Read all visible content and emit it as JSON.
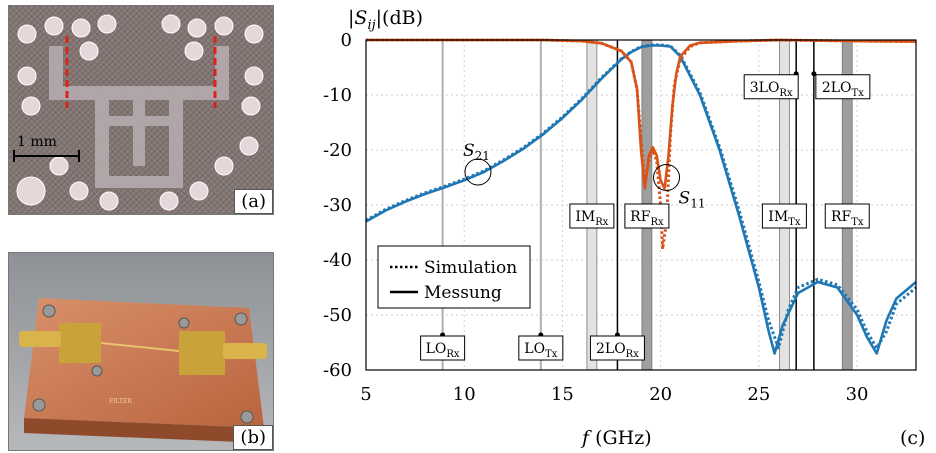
{
  "photos": {
    "a": {
      "label": "(a)",
      "scale_text": "1 mm"
    },
    "b": {
      "label": "(b)"
    }
  },
  "chart_data": {
    "type": "line",
    "panel_label": "(c)",
    "ylabel": "|S_ij|(dB)",
    "xlabel": "f (GHz)",
    "xlim": [
      5,
      33
    ],
    "ylim": [
      -60,
      0
    ],
    "xticks": [
      5,
      10,
      15,
      20,
      25,
      30
    ],
    "yticks": [
      0,
      -10,
      -20,
      -30,
      -40,
      -50,
      -60
    ],
    "grid": true,
    "legend": {
      "position": "lower-left",
      "entries": [
        {
          "label": "Simulation",
          "style": "dotted"
        },
        {
          "label": "Messung",
          "style": "solid"
        }
      ]
    },
    "colors": {
      "S21": "#1f77b4",
      "S11": "#d95319"
    },
    "series": [
      {
        "name": "S21",
        "label_pos": [
          10.7,
          -22
        ],
        "style": "Messung",
        "x": [
          5,
          6,
          7,
          8,
          9,
          10,
          11,
          12,
          13,
          14,
          15,
          16,
          17,
          18,
          18.5,
          19,
          19.5,
          20,
          20.5,
          21,
          22,
          23,
          24,
          25,
          25.5,
          25.8,
          26.2,
          27,
          28,
          29,
          30,
          30.5,
          31,
          31.5,
          32,
          33
        ],
        "y": [
          -33,
          -31,
          -29.4,
          -28,
          -26.8,
          -25.5,
          -24,
          -22,
          -19.8,
          -17.2,
          -14.2,
          -10.8,
          -7,
          -3.5,
          -2.2,
          -1.3,
          -1,
          -1,
          -1.2,
          -3,
          -10,
          -20,
          -32,
          -45,
          -53,
          -57,
          -52,
          -46,
          -44,
          -45,
          -50,
          -54,
          -57,
          -51,
          -47,
          -44
        ]
      },
      {
        "name": "S21 sim",
        "style": "Simulation",
        "x": [
          5,
          6,
          7,
          8,
          9,
          10,
          11,
          12,
          13,
          14,
          15,
          16,
          17,
          18,
          18.5,
          19,
          19.5,
          20,
          20.5,
          21,
          22,
          23,
          24,
          25,
          25.5,
          26,
          26.5,
          27,
          28,
          29,
          30,
          30.5,
          31,
          31.5,
          32,
          33
        ],
        "y": [
          -32.8,
          -30.8,
          -29.2,
          -27.8,
          -26.6,
          -25.3,
          -23.8,
          -21.8,
          -19.6,
          -17,
          -14,
          -10.6,
          -6.8,
          -3.4,
          -2.1,
          -1.2,
          -0.9,
          -0.9,
          -1.1,
          -2.8,
          -9.5,
          -19.5,
          -31,
          -44,
          -51,
          -56,
          -49,
          -45,
          -43.5,
          -44.5,
          -49,
          -53,
          -56,
          -53,
          -48,
          -45
        ]
      },
      {
        "name": "S11",
        "label_pos": [
          20.8,
          -26
        ],
        "style": "Messung",
        "x": [
          5,
          10,
          14,
          16,
          17,
          18,
          18.5,
          18.8,
          19,
          19.2,
          19.4,
          19.6,
          19.8,
          20,
          20.2,
          20.4,
          20.6,
          20.8,
          21,
          21.5,
          22,
          24,
          26,
          30,
          33
        ],
        "y": [
          0,
          0,
          0,
          -0.2,
          -0.6,
          -2,
          -4,
          -9,
          -20,
          -27,
          -21,
          -19.5,
          -21,
          -25.5,
          -27,
          -21,
          -12,
          -6,
          -3,
          -1,
          -0.5,
          -0.2,
          0,
          -0.2,
          -0.3
        ]
      },
      {
        "name": "S11 sim",
        "style": "Simulation",
        "x": [
          5,
          10,
          14,
          16,
          17,
          18,
          18.5,
          18.8,
          19,
          19.2,
          19.4,
          19.6,
          19.8,
          20,
          20.1,
          20.3,
          20.5,
          20.7,
          21,
          21.5,
          22,
          24,
          26,
          30,
          33
        ],
        "y": [
          0,
          0,
          0,
          -0.2,
          -0.6,
          -2,
          -4,
          -9,
          -18,
          -26,
          -22,
          -20,
          -22,
          -30,
          -38,
          -33,
          -17,
          -8,
          -3.5,
          -1.2,
          -0.5,
          -0.2,
          0,
          -0.2,
          -0.3
        ]
      }
    ],
    "markers": [
      {
        "name": "LO_Rx",
        "x": 8.9,
        "kind": "thin-gray",
        "label": "LO",
        "sub": "Rx",
        "label_y": -56
      },
      {
        "name": "LO_Tx",
        "x": 13.9,
        "kind": "thin-gray",
        "label": "LO",
        "sub": "Tx",
        "label_y": -56
      },
      {
        "name": "2LO_Rx",
        "x": 17.8,
        "kind": "black",
        "label": "2LO",
        "sub": "Rx",
        "label_y": -56
      },
      {
        "name": "IM_Rx",
        "x": 16.5,
        "kind": "band-light",
        "label": "IM",
        "sub": "Rx",
        "label_y": -32
      },
      {
        "name": "RF_Rx",
        "x": 19.3,
        "kind": "band-dark",
        "label": "RF",
        "sub": "Rx",
        "label_y": -32
      },
      {
        "name": "3LO_Rx",
        "x": 26.9,
        "kind": "black",
        "label": "3LO",
        "sub": "Rx",
        "label_y": -8.5
      },
      {
        "name": "2LO_Tx",
        "x": 27.8,
        "kind": "black",
        "label": "2LO",
        "sub": "Tx",
        "label_y": -8.5
      },
      {
        "name": "IM_Tx",
        "x": 26.3,
        "kind": "band-light",
        "label": "IM",
        "sub": "Tx",
        "label_y": -32
      },
      {
        "name": "RF_Tx",
        "x": 29.5,
        "kind": "band-dark",
        "label": "RF",
        "sub": "Tx",
        "label_y": -32
      }
    ]
  }
}
